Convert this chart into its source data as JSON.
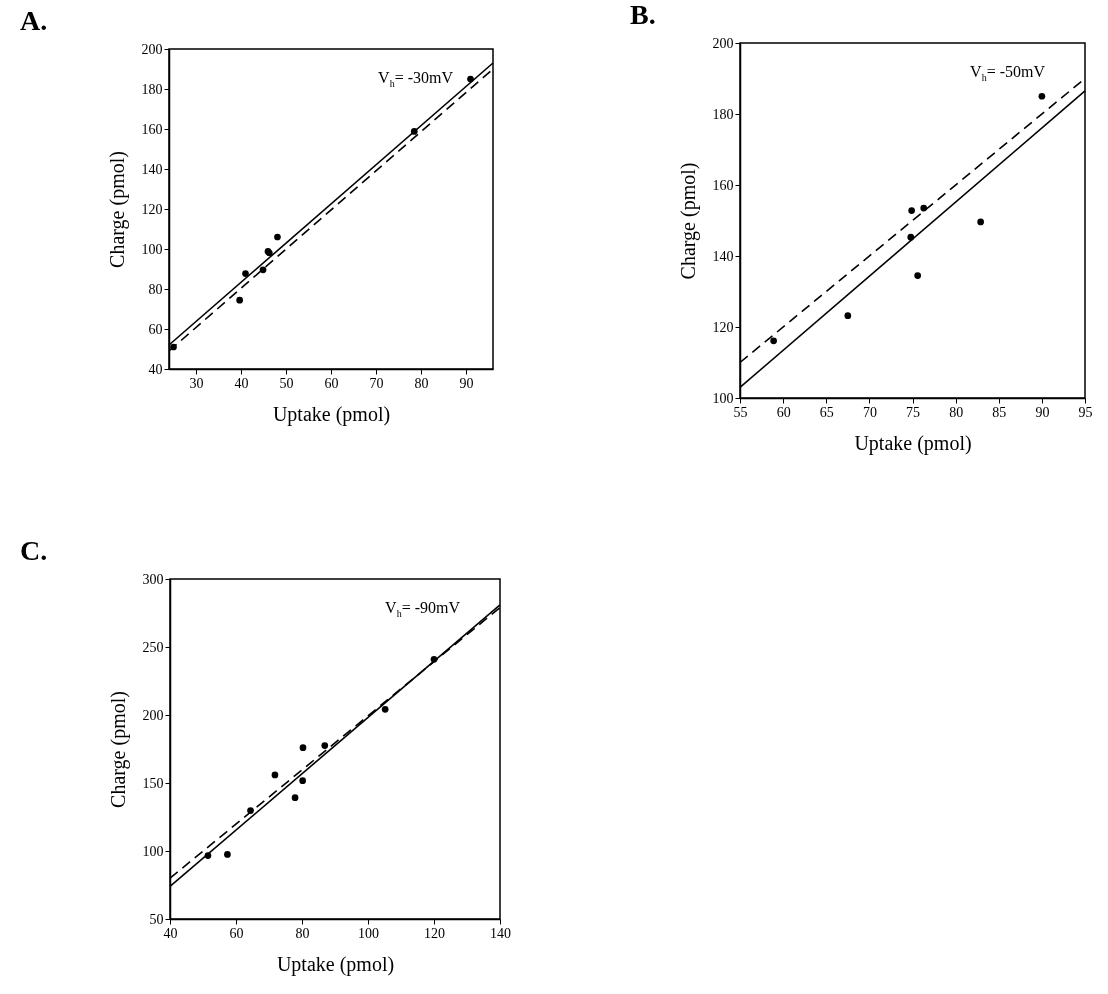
{
  "chart_data": [
    {
      "type": "scatter",
      "title": "A.",
      "xlabel": "Uptake (pmol)",
      "ylabel": "Charge (pmol)",
      "xlim": [
        24,
        96
      ],
      "ylim": [
        40,
        200
      ],
      "xticks": [
        30,
        40,
        50,
        60,
        70,
        80,
        90
      ],
      "yticks": [
        40,
        60,
        80,
        100,
        120,
        140,
        160,
        180,
        200
      ],
      "annotations": [
        "V$_{h}$= -30mV"
      ],
      "series": [
        {
          "type": "scatter",
          "color": "#000000",
          "marker": "circle",
          "x": [
            25,
            39.7,
            41,
            44.9,
            46,
            46.3,
            48.1,
            78.5,
            91
          ],
          "values": [
            51,
            74.4,
            87.7,
            89.6,
            98.8,
            98,
            106,
            158.8,
            185
          ]
        },
        {
          "type": "line",
          "color": "#000000",
          "line_style": "solid",
          "x": [
            24,
            96
          ],
          "values": [
            52,
            193
          ]
        },
        {
          "type": "line",
          "color": "#000000",
          "line_style": "dashed",
          "x": [
            24,
            96
          ],
          "values": [
            49,
            190
          ]
        }
      ]
    },
    {
      "type": "scatter",
      "title": "B.",
      "xlabel": "Uptake (pmol)",
      "ylabel": "Charge (pmol)",
      "xlim": [
        55,
        95
      ],
      "ylim": [
        100,
        200
      ],
      "xticks": [
        55,
        60,
        65,
        70,
        75,
        80,
        85,
        90,
        95
      ],
      "yticks": [
        100,
        120,
        140,
        160,
        180,
        200
      ],
      "annotations": [
        "V$_{h}$= -50mV"
      ],
      "series": [
        {
          "type": "scatter",
          "color": "#000000",
          "marker": "circle",
          "x": [
            58.9,
            67.5,
            74.9,
            74.8,
            76.3,
            75.6,
            82.9,
            90
          ],
          "values": [
            116.1,
            123.2,
            152.8,
            145.3,
            153.5,
            134.5,
            149.6,
            185
          ]
        },
        {
          "type": "line",
          "color": "#000000",
          "line_style": "solid",
          "x": [
            55,
            95
          ],
          "values": [
            103,
            186.5
          ]
        },
        {
          "type": "line",
          "color": "#000000",
          "line_style": "dashed",
          "x": [
            55,
            95
          ],
          "values": [
            110,
            190
          ]
        }
      ]
    },
    {
      "type": "scatter",
      "title": "C.",
      "xlabel": "Uptake (pmol)",
      "ylabel": "Charge (pmol)",
      "xlim": [
        40,
        140
      ],
      "ylim": [
        50,
        300
      ],
      "xticks": [
        40,
        60,
        80,
        100,
        120,
        140
      ],
      "yticks": [
        50,
        100,
        150,
        200,
        250,
        300
      ],
      "annotations": [
        "V$_{h}$= -90mV"
      ],
      "series": [
        {
          "type": "scatter",
          "color": "#000000",
          "marker": "circle",
          "x": [
            51.5,
            57.4,
            64.4,
            71.8,
            77.9,
            80.2,
            80.3,
            86.9,
            105.2,
            120
          ],
          "values": [
            96.6,
            97.5,
            129.7,
            155.9,
            139.2,
            151.7,
            176,
            177.5,
            204.2,
            241
          ]
        },
        {
          "type": "line",
          "color": "#000000",
          "line_style": "solid",
          "x": [
            40,
            140
          ],
          "values": [
            74,
            281
          ]
        },
        {
          "type": "line",
          "color": "#000000",
          "line_style": "dashed",
          "x": [
            40,
            140
          ],
          "values": [
            80,
            279
          ]
        }
      ]
    }
  ]
}
